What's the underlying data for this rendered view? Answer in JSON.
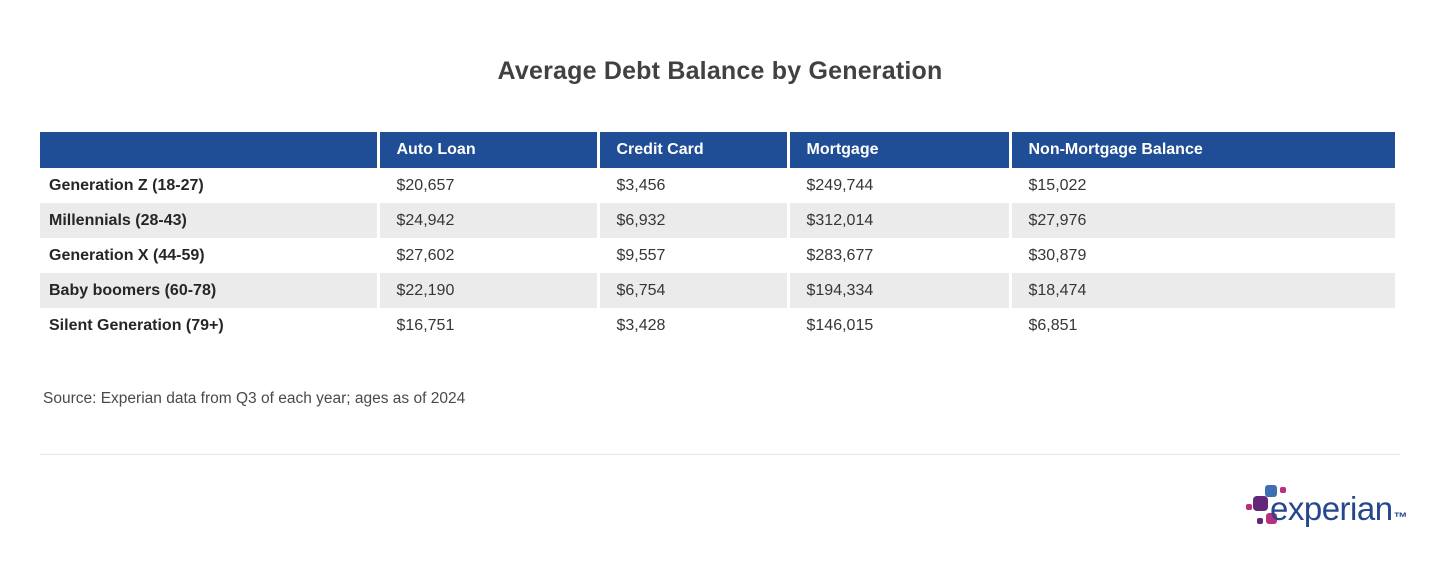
{
  "page": {
    "title": "Average Debt Balance by Generation"
  },
  "table": {
    "columns": [
      "",
      "Auto Loan",
      "Credit Card",
      "Mortgage",
      "Non-Mortgage Balance"
    ],
    "rows": [
      {
        "label": "Generation Z (18-27)",
        "values": [
          "$20,657",
          "$3,456",
          "$249,744",
          "$15,022"
        ]
      },
      {
        "label": "Millennials (28-43)",
        "values": [
          "$24,942",
          "$6,932",
          "$312,014",
          "$27,976"
        ]
      },
      {
        "label": "Generation X (44-59)",
        "values": [
          "$27,602",
          "$9,557",
          "$283,677",
          "$30,879"
        ]
      },
      {
        "label": "Baby boomers (60-78)",
        "values": [
          "$22,190",
          "$6,754",
          "$194,334",
          "$18,474"
        ]
      },
      {
        "label": "Silent Generation (79+)",
        "values": [
          "$16,751",
          "$3,428",
          "$146,015",
          "$6,851"
        ]
      }
    ]
  },
  "source": {
    "text": "Source: Experian data from Q3 of each year; ages as of 2024"
  },
  "logo": {
    "text": "experian",
    "trademark": "™"
  },
  "colors": {
    "header_bg": "#1f4e96",
    "stripe_bg": "#ebebeb",
    "title_text": "#414141",
    "logo_blue": "#26478d",
    "logo_dot_blue": "#406eb3",
    "logo_dot_purple": "#632678",
    "logo_dot_magenta": "#ba2f7d"
  },
  "chart_data": {
    "type": "table",
    "title": "Average Debt Balance by Generation",
    "categories": [
      "Generation Z (18-27)",
      "Millennials (28-43)",
      "Generation X (44-59)",
      "Baby boomers (60-78)",
      "Silent Generation (79+)"
    ],
    "series": [
      {
        "name": "Auto Loan",
        "values": [
          20657,
          24942,
          27602,
          22190,
          16751
        ]
      },
      {
        "name": "Credit Card",
        "values": [
          3456,
          6932,
          9557,
          6754,
          3428
        ]
      },
      {
        "name": "Mortgage",
        "values": [
          249744,
          312014,
          283677,
          194334,
          146015
        ]
      },
      {
        "name": "Non-Mortgage Balance",
        "values": [
          15022,
          27976,
          30879,
          18474,
          6851
        ]
      }
    ],
    "source": "Source: Experian data from Q3 of each year; ages as of 2024",
    "legend_position": "none",
    "grid": false
  }
}
